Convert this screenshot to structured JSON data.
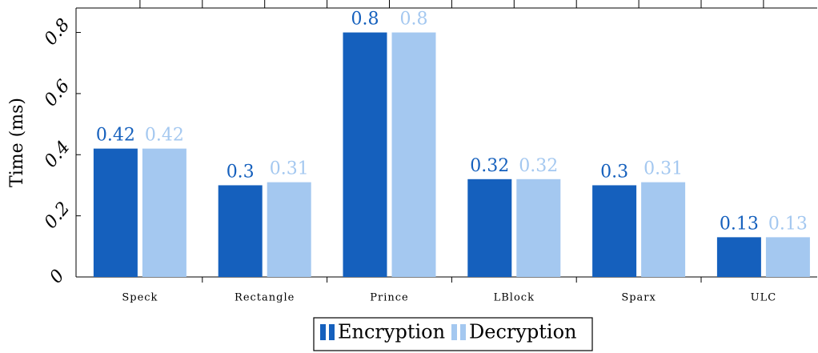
{
  "chart_data": {
    "type": "bar",
    "y_label": "Time (ms)",
    "categories": [
      "Speck",
      "Rectangle",
      "Prince",
      "LBlock",
      "Sparx",
      "ULC"
    ],
    "series": [
      {
        "name": "Encryption",
        "color": "#1560bd",
        "values": [
          0.42,
          0.3,
          0.8,
          0.32,
          0.3,
          0.13
        ]
      },
      {
        "name": "Decryption",
        "color": "#a4c8f0",
        "values": [
          0.42,
          0.31,
          0.8,
          0.32,
          0.31,
          0.13
        ]
      }
    ],
    "ylim": [
      0,
      0.88
    ],
    "yticks": [
      0,
      0.2,
      0.4,
      0.6,
      0.8
    ]
  }
}
